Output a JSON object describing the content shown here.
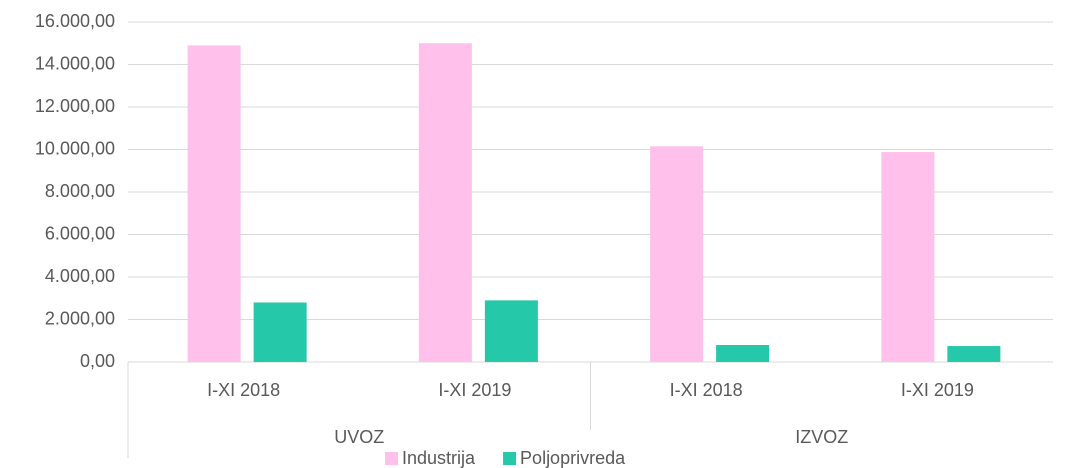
{
  "chart_data": {
    "type": "bar",
    "categories": [
      "I-XI 2018",
      "I-XI 2019",
      "I-XI 2018",
      "I-XI 2019"
    ],
    "groups": [
      "UVOZ",
      "IZVOZ"
    ],
    "series": [
      {
        "name": "Industrija",
        "color": "#ffc0ec",
        "values": [
          14900,
          15000,
          10150,
          9880
        ]
      },
      {
        "name": "Poljoprivreda",
        "color": "#25c8a8",
        "values": [
          2800,
          2900,
          800,
          750
        ]
      }
    ],
    "ylim": [
      0,
      16000
    ],
    "yticks": [
      {
        "value": 0,
        "label": "0,00"
      },
      {
        "value": 2000,
        "label": "2.000,00"
      },
      {
        "value": 4000,
        "label": "4.000,00"
      },
      {
        "value": 6000,
        "label": "6.000,00"
      },
      {
        "value": 8000,
        "label": "8.000,00"
      },
      {
        "value": 10000,
        "label": "10.000,00"
      },
      {
        "value": 12000,
        "label": "12.000,00"
      },
      {
        "value": 14000,
        "label": "14.000,00"
      },
      {
        "value": 16000,
        "label": "16.000,00"
      }
    ],
    "grid": true,
    "legend": "bottom"
  }
}
